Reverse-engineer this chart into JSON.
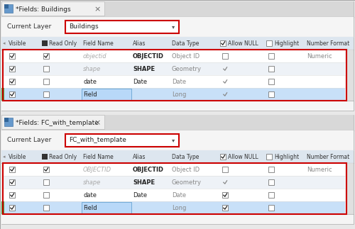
{
  "bg_color": "#e8e8e8",
  "panel_bg": "#f5f5f5",
  "tab_active_bg": "#f0f0f0",
  "row_bg_even": "#ffffff",
  "row_bg_odd": "#f0f4f8",
  "row_selected_bg": "#b8d8f8",
  "hdr_bg": "#dde8f0",
  "red_border": "#cc0000",
  "text_dark": "#222222",
  "text_gray": "#aaaaaa",
  "text_blue_gray": "#8899aa",
  "tab_text_top": "*Fields: Buildings",
  "tab_text_bottom": "*Fields: FC_with_template",
  "current_layer_top": "Buildings",
  "current_layer_bottom": "FC_with_template",
  "col_headers": [
    "Visible",
    "Read Only",
    "Field Name",
    "Alias",
    "Data Type",
    "Allow NULL",
    "Highlight",
    "Number Format"
  ],
  "rows_top": [
    {
      "visible": true,
      "readonly": true,
      "fieldname": "objectid",
      "fn_italic": true,
      "alias": "OBJECTID",
      "alias_bold": true,
      "datatype": "Object ID",
      "allownull": false,
      "allownull_chk": false,
      "highlight": false,
      "numformat": "Numeric",
      "selected": false
    },
    {
      "visible": true,
      "readonly": false,
      "fieldname": "shape",
      "fn_italic": true,
      "alias": "SHAPE",
      "alias_bold": true,
      "datatype": "Geometry",
      "allownull": true,
      "allownull_chk": false,
      "highlight": false,
      "numformat": "",
      "selected": false
    },
    {
      "visible": true,
      "readonly": false,
      "fieldname": "date",
      "fn_italic": false,
      "alias": "Date",
      "alias_bold": false,
      "datatype": "Date",
      "allownull": true,
      "allownull_chk": false,
      "highlight": false,
      "numformat": "",
      "selected": false
    },
    {
      "visible": true,
      "readonly": false,
      "fieldname": "Field",
      "fn_italic": false,
      "alias": "",
      "alias_bold": false,
      "datatype": "Long",
      "allownull": true,
      "allownull_chk": false,
      "highlight": false,
      "numformat": "",
      "selected": true
    }
  ],
  "rows_bottom": [
    {
      "visible": true,
      "readonly": true,
      "fieldname": "OBJECTID",
      "fn_italic": true,
      "alias": "OBJECTID",
      "alias_bold": true,
      "datatype": "Object ID",
      "allownull": false,
      "allownull_chk": false,
      "highlight": false,
      "numformat": "Numeric",
      "selected": false
    },
    {
      "visible": true,
      "readonly": false,
      "fieldname": "shape",
      "fn_italic": true,
      "alias": "SHAPE",
      "alias_bold": true,
      "datatype": "Geometry",
      "allownull": true,
      "allownull_chk": false,
      "highlight": false,
      "numformat": "",
      "selected": false
    },
    {
      "visible": true,
      "readonly": false,
      "fieldname": "date",
      "fn_italic": false,
      "alias": "Date",
      "alias_bold": false,
      "datatype": "Date",
      "allownull": true,
      "allownull_chk": true,
      "highlight": false,
      "numformat": "",
      "selected": false
    },
    {
      "visible": true,
      "readonly": false,
      "fieldname": "Field",
      "fn_italic": false,
      "alias": "",
      "alias_bold": false,
      "datatype": "Long",
      "allownull": true,
      "allownull_chk": true,
      "highlight": false,
      "numformat": "",
      "selected": true
    }
  ]
}
